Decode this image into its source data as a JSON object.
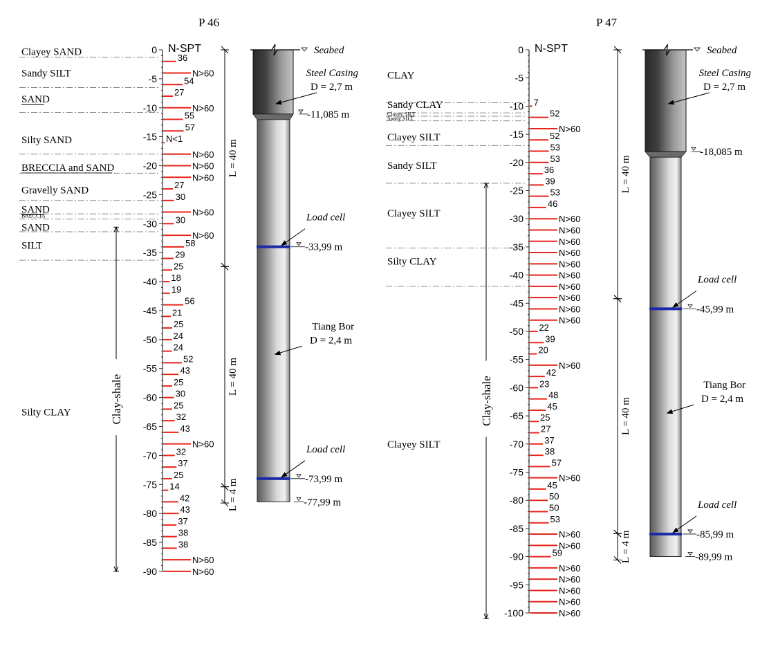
{
  "colors": {
    "spt_bar": "#e8231a",
    "load_cell": "#1c2aa8",
    "layer_line": "#8a8a8a",
    "ink": "#000000"
  },
  "panels": [
    {
      "id": "p46",
      "title": "P 46",
      "spt_header": "N-SPT",
      "axis_max": 90,
      "axis_labels": [
        "0",
        "-5",
        "-10",
        "-15",
        "-20",
        "-25",
        "-30",
        "-35",
        "-40",
        "-45",
        "-50",
        "-55",
        "-60",
        "-65",
        "-70",
        "-75",
        "-80",
        "-85",
        "-90"
      ],
      "layers": [
        {
          "name": "Clayey SAND",
          "label_depth": 0.3,
          "boundary": 1.3
        },
        {
          "name": "Sandy SILT",
          "label_depth": 4,
          "boundary": 6.5
        },
        {
          "name": "SAND",
          "label_depth": 8.5,
          "boundary": 10.8,
          "underline": true
        },
        {
          "name": "Silty SAND",
          "label_depth": 15.5,
          "boundary": 18
        },
        {
          "name": "BRECCIA and SAND",
          "label_depth": 20.3,
          "boundary": 21.3,
          "underline": true
        },
        {
          "name": "Gravelly SAND",
          "label_depth": 24.2,
          "boundary": 26
        },
        {
          "name": "SAND",
          "label_depth": 27.5,
          "boundary": 28.3,
          "underline": true
        },
        {
          "name": "BRECCIA",
          "label_depth": 28.7,
          "boundary": 29.2,
          "small": true
        },
        {
          "name": "SAND",
          "label_depth": 30.6,
          "boundary": 31.4
        },
        {
          "name": "SILT",
          "label_depth": 33.7,
          "boundary": 36.3
        },
        {
          "name": "Silty CLAY",
          "label_depth": 62.5
        }
      ],
      "spt": [
        {
          "d": 2,
          "v": "36"
        },
        {
          "d": 4,
          "v": "N>60"
        },
        {
          "d": 6,
          "v": "54"
        },
        {
          "d": 8,
          "v": "27"
        },
        {
          "d": 10,
          "v": "N>60"
        },
        {
          "d": 12,
          "v": "55"
        },
        {
          "d": 14,
          "v": "57"
        },
        {
          "d": 16,
          "v": "N<1"
        },
        {
          "d": 18,
          "v": "N>60"
        },
        {
          "d": 20,
          "v": "N>60"
        },
        {
          "d": 22,
          "v": "N>60"
        },
        {
          "d": 24,
          "v": "27"
        },
        {
          "d": 26,
          "v": "30"
        },
        {
          "d": 28,
          "v": "N>60"
        },
        {
          "d": 30,
          "v": "30"
        },
        {
          "d": 32,
          "v": "N>60"
        },
        {
          "d": 34,
          "v": "58"
        },
        {
          "d": 36,
          "v": "29"
        },
        {
          "d": 38,
          "v": "25"
        },
        {
          "d": 40,
          "v": "18"
        },
        {
          "d": 42,
          "v": "19"
        },
        {
          "d": 44,
          "v": "56"
        },
        {
          "d": 46,
          "v": "21"
        },
        {
          "d": 48,
          "v": "25"
        },
        {
          "d": 50,
          "v": "24"
        },
        {
          "d": 52,
          "v": "24"
        },
        {
          "d": 54,
          "v": "52"
        },
        {
          "d": 56,
          "v": "43"
        },
        {
          "d": 58,
          "v": "25"
        },
        {
          "d": 60,
          "v": "30"
        },
        {
          "d": 62,
          "v": "25"
        },
        {
          "d": 64,
          "v": "32"
        },
        {
          "d": 66,
          "v": "43"
        },
        {
          "d": 68,
          "v": "N>60"
        },
        {
          "d": 70,
          "v": "32"
        },
        {
          "d": 72,
          "v": "37"
        },
        {
          "d": 74,
          "v": "25"
        },
        {
          "d": 76,
          "v": "14"
        },
        {
          "d": 78,
          "v": "42"
        },
        {
          "d": 80,
          "v": "43"
        },
        {
          "d": 82,
          "v": "37"
        },
        {
          "d": 84,
          "v": "38"
        },
        {
          "d": 86,
          "v": "38"
        },
        {
          "d": 88,
          "v": "N>60"
        },
        {
          "d": 90,
          "v": "N>60"
        }
      ],
      "clay_shale": {
        "label": "Clay-shale",
        "top": 30.6,
        "bottom": 90
      },
      "pile": {
        "seabed": "Seabed",
        "casing_label": "Steel Casing",
        "casing_dia": "D = 2,7 m",
        "casing_bottom": 11.085,
        "casing_bottom_label": "-11,085 m",
        "bore_label": "Tiang Bor",
        "bore_dia": "D = 2,4 m",
        "load_cells": [
          {
            "label": "Load cell",
            "depth": 33.99,
            "depth_label": "-33,99 m"
          },
          {
            "label": "Load cell",
            "depth": 73.99,
            "depth_label": "-73,99 m"
          }
        ],
        "tip": 77.99,
        "tip_label": "-77,99 m",
        "segments": [
          {
            "label": "L = 40 m",
            "top": 0,
            "bottom": 37.4
          },
          {
            "label": "L = 40 m",
            "top": 37.4,
            "bottom": 75.4
          },
          {
            "label": "L = 4 m",
            "top": 75.4,
            "bottom": 78.2
          }
        ]
      }
    },
    {
      "id": "p47",
      "title": "P 47",
      "spt_header": "N-SPT",
      "axis_max": 100,
      "axis_labels": [
        "0",
        "-5",
        "-10",
        "-15",
        "-20",
        "-25",
        "-30",
        "-35",
        "-40",
        "-45",
        "-50",
        "-55",
        "-60",
        "-65",
        "-70",
        "-75",
        "-80",
        "-85",
        "-90",
        "-95",
        "-100"
      ],
      "layers": [
        {
          "name": "CLAY",
          "label_depth": 4.5,
          "boundary": 9.4
        },
        {
          "name": "Sandy CLAY",
          "label_depth": 9.7,
          "boundary": 11.2
        },
        {
          "name": "Clayey SILT",
          "label_depth": 11.5,
          "boundary": 11.8,
          "small": true
        },
        {
          "name": "Sandy SILT",
          "label_depth": 12.3,
          "boundary": 12.6,
          "small": true
        },
        {
          "name": "Clayey SILT",
          "label_depth": 15.5,
          "boundary": 17
        },
        {
          "name": "Sandy SILT",
          "label_depth": 20.5,
          "boundary": 23.7
        },
        {
          "name": "Clayey SILT",
          "label_depth": 29,
          "boundary": 35.2
        },
        {
          "name": "Silty CLAY",
          "label_depth": 37.5,
          "boundary": 42
        },
        {
          "name": "Clayey SILT",
          "label_depth": 70
        }
      ],
      "spt": [
        {
          "d": 10,
          "v": "7"
        },
        {
          "d": 12,
          "v": "52"
        },
        {
          "d": 14,
          "v": "N>60"
        },
        {
          "d": 16,
          "v": "52"
        },
        {
          "d": 18,
          "v": "53"
        },
        {
          "d": 20,
          "v": "53"
        },
        {
          "d": 22,
          "v": "36"
        },
        {
          "d": 24,
          "v": "39"
        },
        {
          "d": 26,
          "v": "53"
        },
        {
          "d": 28,
          "v": "46"
        },
        {
          "d": 30,
          "v": "N>60"
        },
        {
          "d": 32,
          "v": "N>60"
        },
        {
          "d": 34,
          "v": "N>60"
        },
        {
          "d": 36,
          "v": "N>60"
        },
        {
          "d": 38,
          "v": "N>60"
        },
        {
          "d": 40,
          "v": "N>60"
        },
        {
          "d": 42,
          "v": "N>60"
        },
        {
          "d": 44,
          "v": "N>60"
        },
        {
          "d": 46,
          "v": "N>60"
        },
        {
          "d": 48,
          "v": "N>60"
        },
        {
          "d": 50,
          "v": "22"
        },
        {
          "d": 52,
          "v": "39"
        },
        {
          "d": 54,
          "v": "20"
        },
        {
          "d": 56,
          "v": "N>60"
        },
        {
          "d": 58,
          "v": "42"
        },
        {
          "d": 60,
          "v": "23"
        },
        {
          "d": 62,
          "v": "48"
        },
        {
          "d": 64,
          "v": "45"
        },
        {
          "d": 66,
          "v": "25"
        },
        {
          "d": 68,
          "v": "27"
        },
        {
          "d": 70,
          "v": "37"
        },
        {
          "d": 72,
          "v": "38"
        },
        {
          "d": 74,
          "v": "57"
        },
        {
          "d": 76,
          "v": "N>60"
        },
        {
          "d": 78,
          "v": "45"
        },
        {
          "d": 80,
          "v": "50"
        },
        {
          "d": 82,
          "v": "50"
        },
        {
          "d": 84,
          "v": "53"
        },
        {
          "d": 86,
          "v": "N>60"
        },
        {
          "d": 88,
          "v": "N>60"
        },
        {
          "d": 90,
          "v": "59"
        },
        {
          "d": 92,
          "v": "N>60"
        },
        {
          "d": 94,
          "v": "N>60"
        },
        {
          "d": 96,
          "v": "N>60"
        },
        {
          "d": 98,
          "v": "N>60"
        },
        {
          "d": 100,
          "v": "N>60"
        }
      ],
      "clay_shale": {
        "label": "Clay-shale",
        "top": 23.7,
        "bottom": 101
      },
      "pile": {
        "seabed": "Seabed",
        "casing_label": "Steel Casing",
        "casing_dia": "D = 2,7 m",
        "casing_bottom": 18.085,
        "casing_bottom_label": "-18,085 m",
        "bore_label": "Tiang Bor",
        "bore_dia": "D = 2,4 m",
        "load_cells": [
          {
            "label": "Load cell",
            "depth": 45.99,
            "depth_label": "-45,99 m"
          },
          {
            "label": "Load cell",
            "depth": 85.99,
            "depth_label": "-85,99 m"
          }
        ],
        "tip": 89.99,
        "tip_label": "-89,99 m",
        "segments": [
          {
            "label": "L = 40 m",
            "top": 0,
            "bottom": 44.2
          },
          {
            "label": "L = 40 m",
            "top": 44.2,
            "bottom": 85.9
          },
          {
            "label": "L = 4 m",
            "top": 85.9,
            "bottom": 90.6
          }
        ]
      }
    }
  ]
}
